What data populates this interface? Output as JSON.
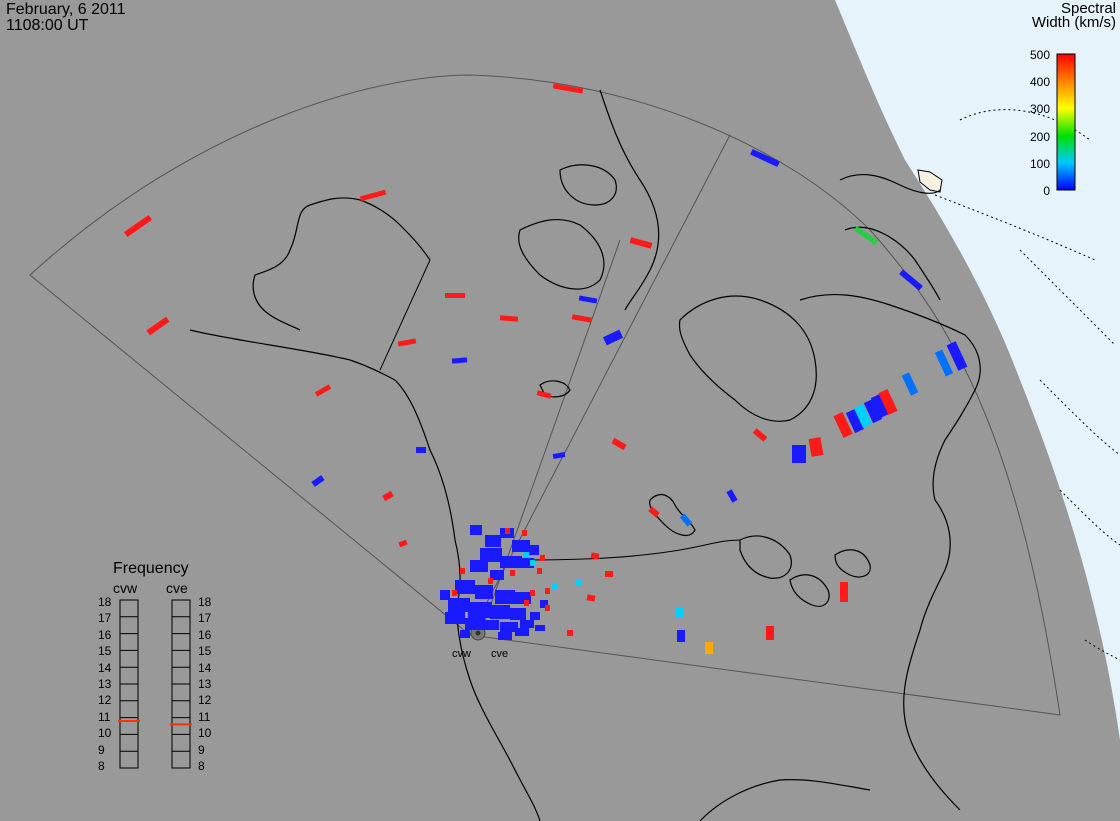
{
  "header": {
    "date": "February, 6 2011",
    "time": "1108:00 UT"
  },
  "colorbar": {
    "title_line1": "Spectral",
    "title_line2": "Width (km/s)",
    "ticks": [
      "500",
      "400",
      "300",
      "200",
      "100",
      "0"
    ],
    "min": 0,
    "max": 500
  },
  "frequency_panel": {
    "title": "Frequency",
    "radars": [
      {
        "name": "cvw",
        "value_mhz": 10.8
      },
      {
        "name": "cve",
        "value_mhz": 10.6
      }
    ],
    "scale": [
      "18",
      "17",
      "16",
      "15",
      "14",
      "13",
      "12",
      "11",
      "10",
      "9",
      "8"
    ]
  },
  "radar_sites": [
    {
      "name": "cvw"
    },
    {
      "name": "cve"
    }
  ],
  "colors": {
    "background": "#999999",
    "ocean_night": "#e8f4fc",
    "sunlit_land": "#f5f0e0",
    "echo_low": "#1a1aff",
    "echo_high": "#ff1a1a"
  }
}
